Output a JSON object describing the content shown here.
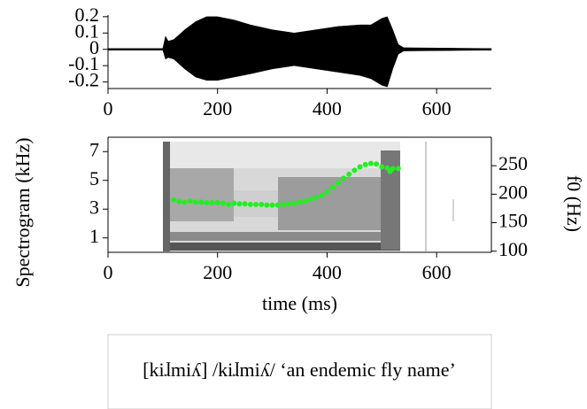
{
  "chart_data": [
    {
      "type": "area",
      "x": [
        0,
        100,
        105,
        110,
        120,
        140,
        160,
        180,
        200,
        230,
        260,
        300,
        340,
        380,
        420,
        460,
        480,
        500,
        510,
        520,
        530,
        540,
        700
      ],
      "series": [
        {
          "color": "#000000",
          "values": [
            0.005,
            0.005,
            0.08,
            0.05,
            0.06,
            0.12,
            0.17,
            0.2,
            0.2,
            0.18,
            0.15,
            0.12,
            0.1,
            0.12,
            0.14,
            0.15,
            0.15,
            0.19,
            0.2,
            0.12,
            0.03,
            0.01,
            0.005
          ]
        },
        {
          "color": "#000000",
          "values": [
            -0.005,
            -0.005,
            -0.06,
            -0.05,
            -0.06,
            -0.12,
            -0.17,
            -0.19,
            -0.19,
            -0.17,
            -0.15,
            -0.12,
            -0.1,
            -0.12,
            -0.14,
            -0.16,
            -0.18,
            -0.22,
            -0.23,
            -0.12,
            -0.03,
            -0.01,
            -0.005
          ]
        }
      ],
      "xlim": [
        0,
        700
      ],
      "xticks": [
        0,
        200,
        400,
        600
      ],
      "ylim": [
        -0.24,
        0.21
      ],
      "yticks": [
        -0.2,
        -0.1,
        0,
        0.1,
        0.2
      ]
    },
    {
      "type": "scatter",
      "xlabel": "time (ms)",
      "ylabel": "Spectrogram (kHz)",
      "y2label": "f0 (Hz)",
      "xlim": [
        0,
        700
      ],
      "xticks": [
        0,
        200,
        400,
        600
      ],
      "ylim": [
        0,
        8
      ],
      "yticks": [
        1,
        3,
        5,
        7
      ],
      "y2lim": [
        98,
        300
      ],
      "y2ticks": [
        100,
        150,
        200,
        250
      ],
      "series": [
        {
          "axis": "y2",
          "color": "#22ee22",
          "x": [
            120,
            130,
            140,
            150,
            160,
            170,
            180,
            190,
            200,
            210,
            220,
            230,
            240,
            250,
            260,
            270,
            280,
            290,
            300,
            310,
            320,
            330,
            340,
            350,
            360,
            370,
            380,
            390,
            400,
            410,
            420,
            430,
            440,
            450,
            460,
            470,
            480,
            490,
            500,
            510,
            515,
            520,
            530
          ],
          "values": [
            190,
            187,
            186,
            188,
            186,
            186,
            185,
            185,
            185,
            184,
            182,
            184,
            183,
            183,
            182,
            182,
            182,
            181,
            181,
            181,
            182,
            183,
            184,
            186,
            188,
            191,
            194,
            198,
            204,
            212,
            220,
            228,
            235,
            242,
            248,
            252,
            254,
            253,
            248,
            246,
            240,
            245,
            245
          ]
        }
      ]
    }
  ],
  "caption": "[kiɺmiʎ] /kiɺmiʎ/ ‘an endemic fly name’"
}
